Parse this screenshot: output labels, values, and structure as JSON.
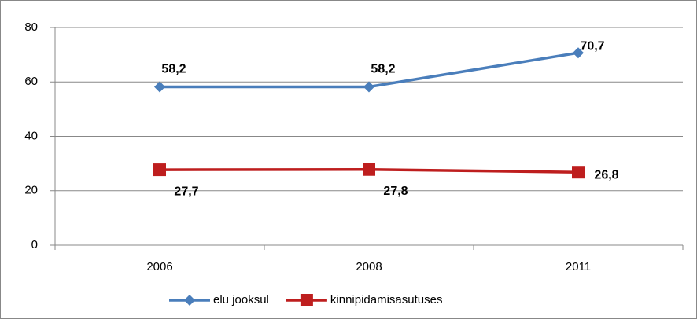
{
  "chart_data": {
    "type": "line",
    "categories": [
      "2006",
      "2008",
      "2011"
    ],
    "series": [
      {
        "name": "elu jooksul",
        "color": "#4a7ebb",
        "marker": "diamond",
        "values": [
          58.2,
          58.2,
          70.7
        ],
        "value_labels": [
          "58,2",
          "58,2",
          "70,7"
        ]
      },
      {
        "name": "kinnipidamisasutuses",
        "color": "#be1e1e",
        "marker": "square",
        "values": [
          27.7,
          27.8,
          26.8
        ],
        "value_labels": [
          "27,7",
          "27,8",
          "26,8"
        ]
      }
    ],
    "ylim": [
      0,
      80
    ],
    "yticks": [
      0,
      20,
      40,
      60,
      80
    ],
    "grid": true,
    "legend": "bottom"
  }
}
